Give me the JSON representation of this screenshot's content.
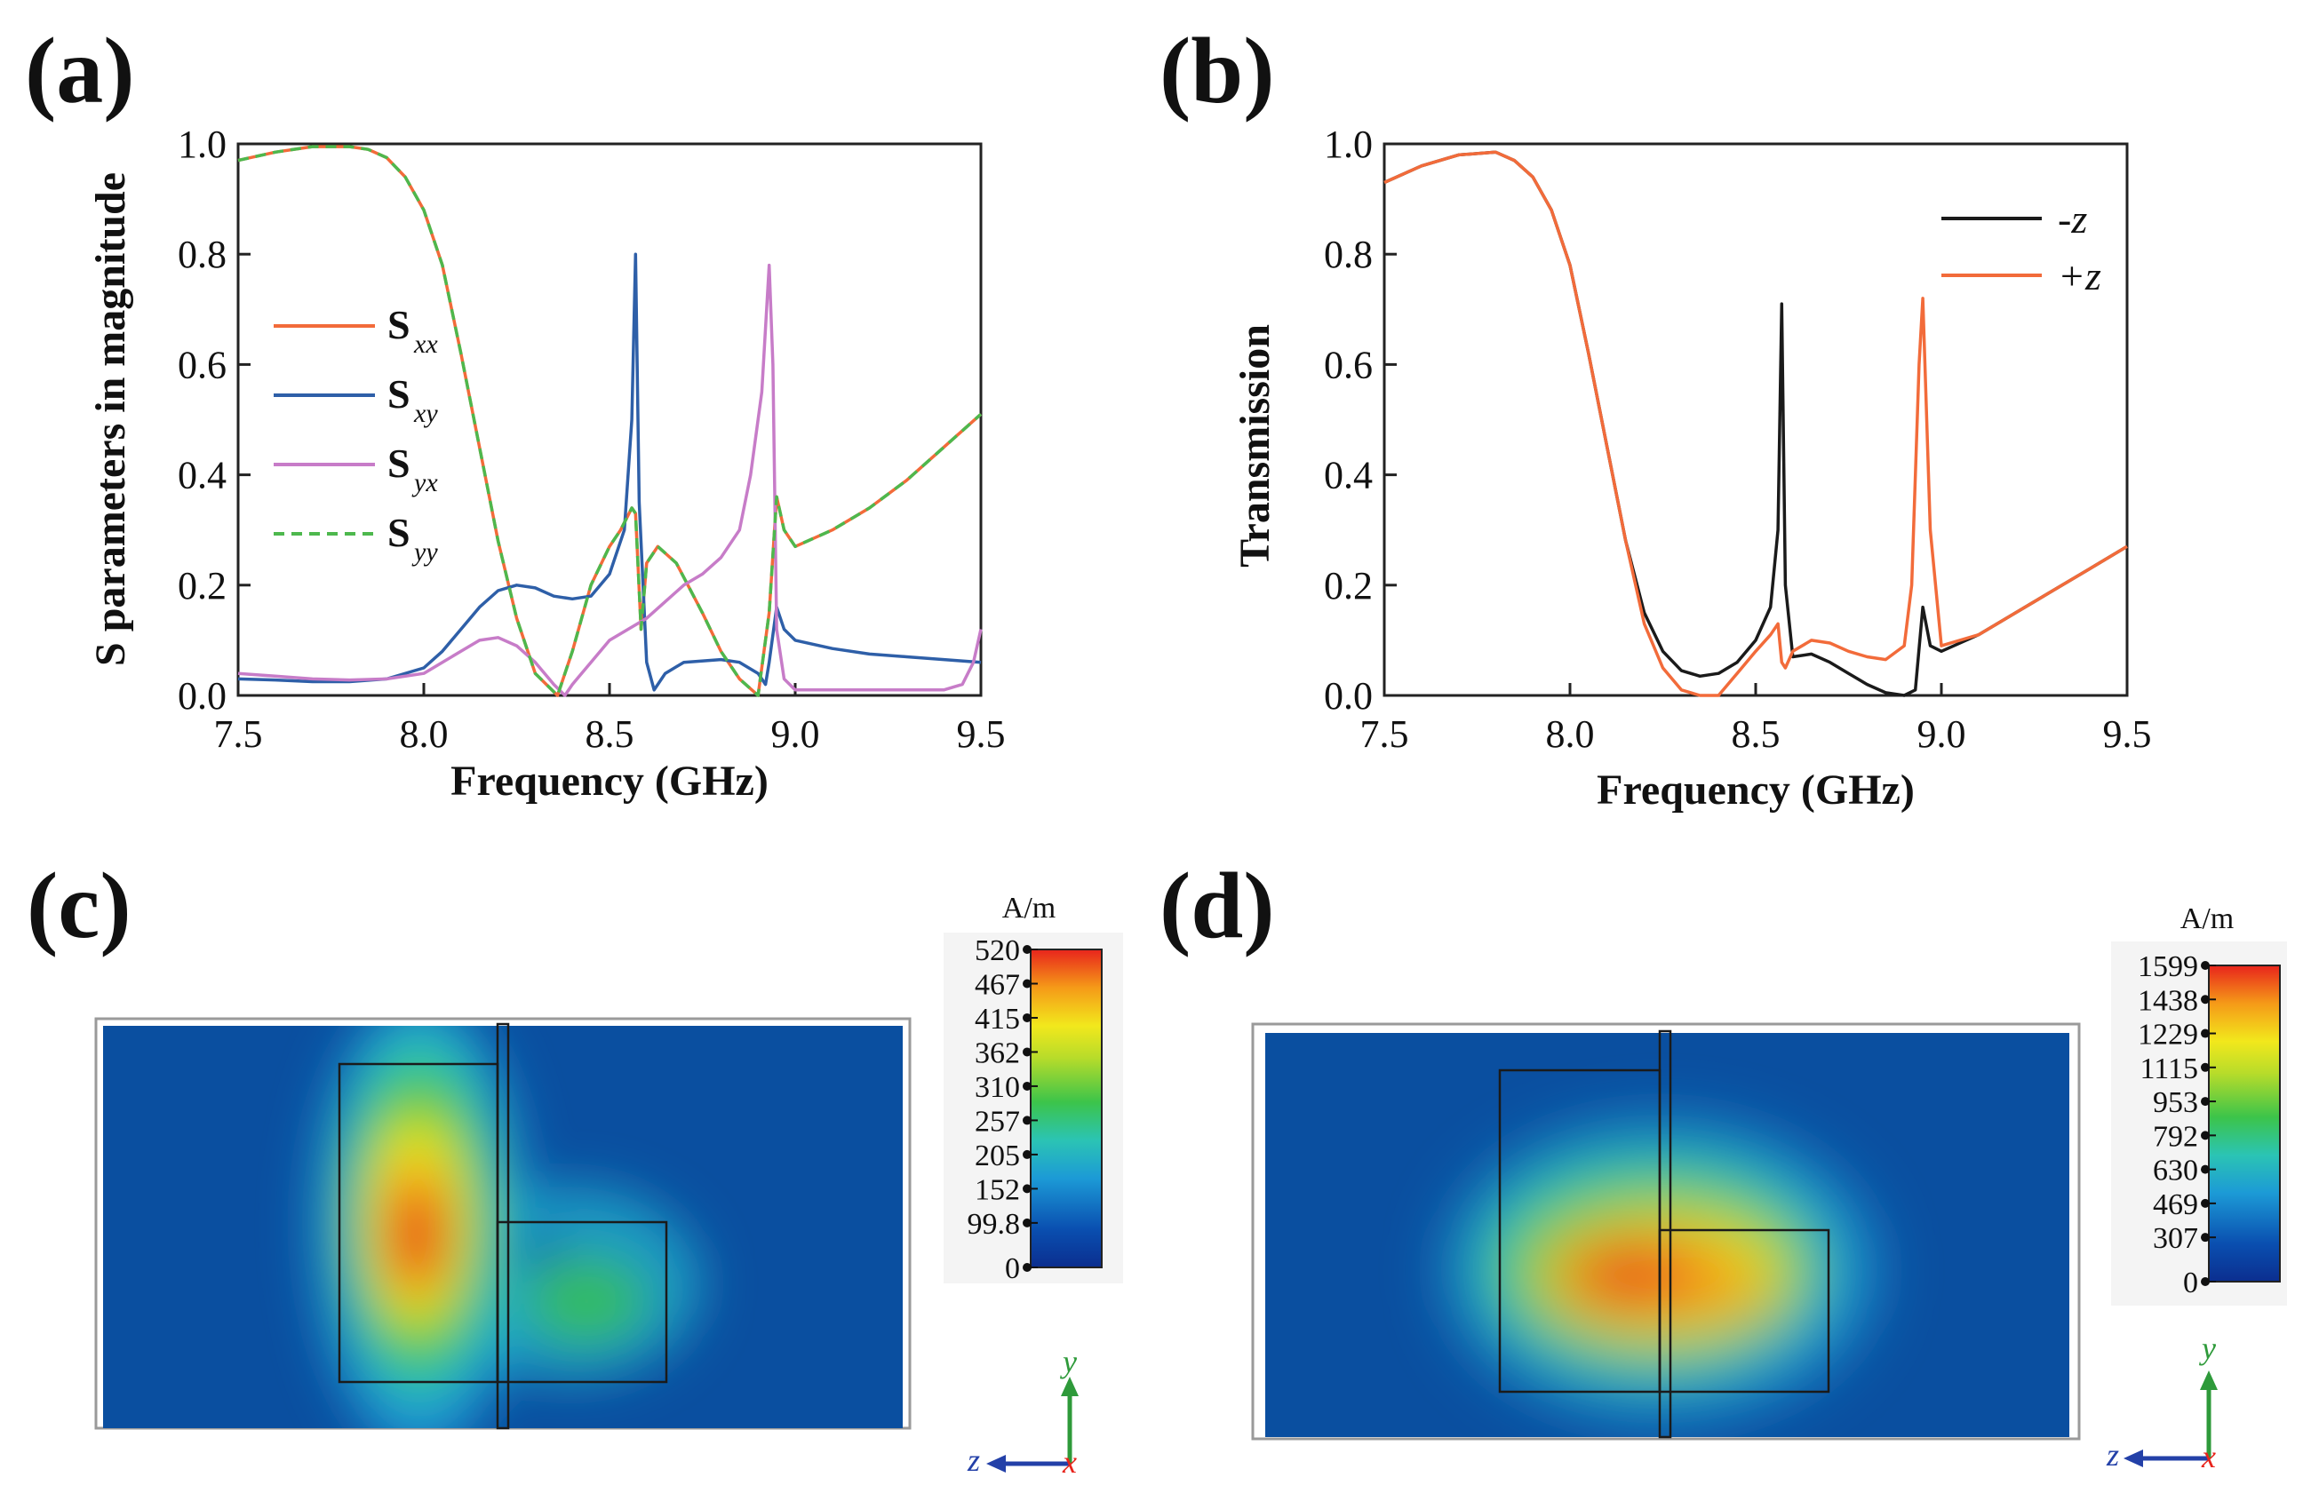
{
  "panels": {
    "a": "(a)",
    "b": "(b)",
    "c": "(c)",
    "d": "(d)"
  },
  "chart_data": [
    {
      "id": "a",
      "type": "line",
      "xlabel": "Frequency (GHz)",
      "ylabel": "S parameters in magnitude",
      "xlim": [
        7.5,
        9.5
      ],
      "ylim": [
        0.0,
        1.0
      ],
      "xticks": [
        "7.5",
        "8.0",
        "8.5",
        "9.0",
        "9.5"
      ],
      "yticks": [
        "0.0",
        "0.2",
        "0.4",
        "0.6",
        "0.8",
        "1.0"
      ],
      "legend_position": "left",
      "series": [
        {
          "name": "S",
          "sub": "xx",
          "color": "#f26b3a",
          "dash": "solid",
          "x": [
            7.5,
            7.6,
            7.7,
            7.8,
            7.85,
            7.9,
            7.95,
            8.0,
            8.05,
            8.1,
            8.15,
            8.2,
            8.25,
            8.3,
            8.33,
            8.36,
            8.4,
            8.45,
            8.5,
            8.53,
            8.56,
            8.57,
            8.585,
            8.6,
            8.63,
            8.68,
            8.75,
            8.8,
            8.85,
            8.9,
            8.93,
            8.95,
            8.97,
            9.0,
            9.1,
            9.2,
            9.3,
            9.4,
            9.5
          ],
          "y": [
            0.97,
            0.985,
            0.995,
            0.995,
            0.99,
            0.975,
            0.94,
            0.88,
            0.78,
            0.62,
            0.45,
            0.28,
            0.14,
            0.04,
            0.02,
            0.0,
            0.08,
            0.2,
            0.27,
            0.3,
            0.34,
            0.33,
            0.12,
            0.24,
            0.27,
            0.24,
            0.15,
            0.08,
            0.03,
            0.0,
            0.15,
            0.36,
            0.3,
            0.27,
            0.3,
            0.34,
            0.39,
            0.45,
            0.51
          ]
        },
        {
          "name": "S",
          "sub": "xy",
          "color": "#2e5fa8",
          "dash": "solid",
          "x": [
            7.5,
            7.6,
            7.7,
            7.8,
            7.9,
            8.0,
            8.05,
            8.1,
            8.15,
            8.2,
            8.25,
            8.3,
            8.35,
            8.4,
            8.45,
            8.5,
            8.54,
            8.56,
            8.57,
            8.58,
            8.6,
            8.62,
            8.65,
            8.7,
            8.8,
            8.85,
            8.9,
            8.92,
            8.93,
            8.95,
            8.97,
            9.0,
            9.1,
            9.2,
            9.3,
            9.4,
            9.5
          ],
          "y": [
            0.03,
            0.028,
            0.025,
            0.025,
            0.03,
            0.05,
            0.08,
            0.12,
            0.16,
            0.19,
            0.2,
            0.195,
            0.18,
            0.175,
            0.18,
            0.22,
            0.3,
            0.5,
            0.8,
            0.35,
            0.06,
            0.01,
            0.04,
            0.06,
            0.065,
            0.06,
            0.04,
            0.02,
            0.06,
            0.16,
            0.12,
            0.1,
            0.085,
            0.075,
            0.07,
            0.065,
            0.06
          ]
        },
        {
          "name": "S",
          "sub": "yx",
          "color": "#c77cc8",
          "dash": "solid",
          "x": [
            7.5,
            7.6,
            7.7,
            7.8,
            7.9,
            8.0,
            8.05,
            8.1,
            8.15,
            8.2,
            8.25,
            8.3,
            8.35,
            8.38,
            8.4,
            8.45,
            8.5,
            8.55,
            8.6,
            8.65,
            8.7,
            8.75,
            8.8,
            8.85,
            8.88,
            8.91,
            8.93,
            8.94,
            8.95,
            8.97,
            9.0,
            9.1,
            9.2,
            9.3,
            9.4,
            9.45,
            9.48,
            9.5
          ],
          "y": [
            0.04,
            0.035,
            0.03,
            0.028,
            0.03,
            0.04,
            0.06,
            0.08,
            0.1,
            0.105,
            0.09,
            0.06,
            0.02,
            0.0,
            0.02,
            0.06,
            0.1,
            0.12,
            0.14,
            0.17,
            0.2,
            0.22,
            0.25,
            0.3,
            0.4,
            0.55,
            0.78,
            0.6,
            0.12,
            0.03,
            0.01,
            0.01,
            0.01,
            0.01,
            0.01,
            0.02,
            0.06,
            0.12
          ]
        },
        {
          "name": "S",
          "sub": "yy",
          "color": "#4db84d",
          "dash": "dashed",
          "x": [
            7.5,
            7.6,
            7.7,
            7.8,
            7.85,
            7.9,
            7.95,
            8.0,
            8.05,
            8.1,
            8.15,
            8.2,
            8.25,
            8.3,
            8.33,
            8.36,
            8.4,
            8.45,
            8.5,
            8.53,
            8.56,
            8.57,
            8.585,
            8.6,
            8.63,
            8.68,
            8.75,
            8.8,
            8.85,
            8.9,
            8.93,
            8.95,
            8.97,
            9.0,
            9.1,
            9.2,
            9.3,
            9.4,
            9.5
          ],
          "y": [
            0.97,
            0.985,
            0.995,
            0.995,
            0.99,
            0.975,
            0.94,
            0.88,
            0.78,
            0.62,
            0.45,
            0.28,
            0.14,
            0.04,
            0.02,
            0.0,
            0.08,
            0.2,
            0.27,
            0.3,
            0.34,
            0.33,
            0.12,
            0.24,
            0.27,
            0.24,
            0.15,
            0.08,
            0.03,
            0.0,
            0.15,
            0.36,
            0.3,
            0.27,
            0.3,
            0.34,
            0.39,
            0.45,
            0.51
          ]
        }
      ]
    },
    {
      "id": "b",
      "type": "line",
      "xlabel": "Frequency (GHz)",
      "ylabel": "Transmission",
      "xlim": [
        7.5,
        9.5
      ],
      "ylim": [
        0.0,
        1.0
      ],
      "xticks": [
        "7.5",
        "8.0",
        "8.5",
        "9.0",
        "9.5"
      ],
      "yticks": [
        "0.0",
        "0.2",
        "0.4",
        "0.6",
        "0.8",
        "1.0"
      ],
      "legend_position": "top-right",
      "series": [
        {
          "name": "-z",
          "color": "#1a1a1a",
          "x": [
            7.5,
            7.6,
            7.7,
            7.8,
            7.85,
            7.9,
            7.95,
            8.0,
            8.05,
            8.1,
            8.15,
            8.2,
            8.25,
            8.3,
            8.35,
            8.4,
            8.45,
            8.5,
            8.54,
            8.56,
            8.57,
            8.58,
            8.6,
            8.65,
            8.7,
            8.75,
            8.8,
            8.85,
            8.9,
            8.93,
            8.95,
            8.97,
            9.0,
            9.1,
            9.2,
            9.3,
            9.4,
            9.5
          ],
          "y": [
            0.93,
            0.96,
            0.98,
            0.985,
            0.97,
            0.94,
            0.88,
            0.78,
            0.62,
            0.45,
            0.28,
            0.15,
            0.08,
            0.045,
            0.035,
            0.04,
            0.06,
            0.1,
            0.16,
            0.3,
            0.71,
            0.2,
            0.07,
            0.075,
            0.06,
            0.04,
            0.02,
            0.005,
            0.0,
            0.01,
            0.16,
            0.09,
            0.08,
            0.11,
            0.15,
            0.19,
            0.23,
            0.27
          ]
        },
        {
          "name": "+z",
          "color": "#f26b3a",
          "x": [
            7.5,
            7.6,
            7.7,
            7.8,
            7.85,
            7.9,
            7.95,
            8.0,
            8.05,
            8.1,
            8.15,
            8.2,
            8.25,
            8.3,
            8.35,
            8.4,
            8.45,
            8.5,
            8.54,
            8.56,
            8.57,
            8.58,
            8.6,
            8.65,
            8.7,
            8.75,
            8.8,
            8.85,
            8.9,
            8.92,
            8.94,
            8.95,
            8.97,
            9.0,
            9.1,
            9.2,
            9.3,
            9.4,
            9.5
          ],
          "y": [
            0.93,
            0.96,
            0.98,
            0.985,
            0.97,
            0.94,
            0.88,
            0.78,
            0.62,
            0.45,
            0.28,
            0.13,
            0.05,
            0.01,
            0.0,
            0.0,
            0.04,
            0.08,
            0.11,
            0.13,
            0.06,
            0.05,
            0.08,
            0.1,
            0.095,
            0.08,
            0.07,
            0.065,
            0.09,
            0.2,
            0.6,
            0.72,
            0.3,
            0.09,
            0.11,
            0.15,
            0.19,
            0.23,
            0.27
          ]
        }
      ]
    }
  ],
  "fieldmaps": [
    {
      "id": "c",
      "unit": "A/m",
      "ticks": [
        "520",
        "467",
        "415",
        "362",
        "310",
        "257",
        "205",
        "152",
        "99.8",
        "0"
      ],
      "axes": {
        "y": "y",
        "z": "z",
        "x": "x"
      }
    },
    {
      "id": "d",
      "unit": "A/m",
      "ticks": [
        "1599",
        "1438",
        "1229",
        "1115",
        "953",
        "792",
        "630",
        "469",
        "307",
        "0"
      ],
      "axes": {
        "y": "y",
        "z": "z",
        "x": "x"
      }
    }
  ],
  "colors": {
    "field_background": "#0a4fa0",
    "frame": "#555555"
  }
}
